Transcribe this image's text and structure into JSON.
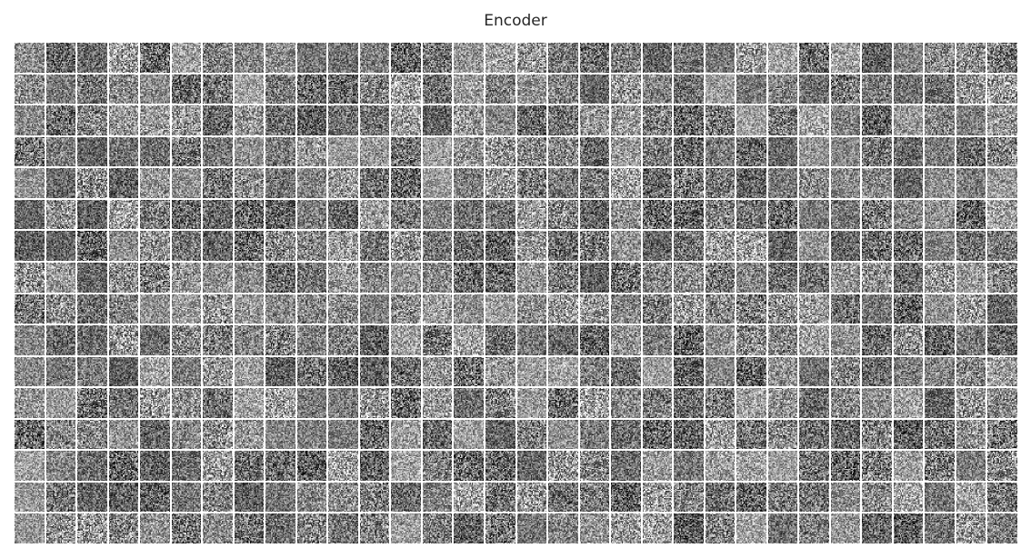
{
  "chart_data": {
    "type": "heatmap",
    "title": "Encoder",
    "description_values": {
      "rows": 16,
      "cols": 32,
      "tile_resolution": 28,
      "colormap": "gray",
      "axis": "off"
    }
  }
}
